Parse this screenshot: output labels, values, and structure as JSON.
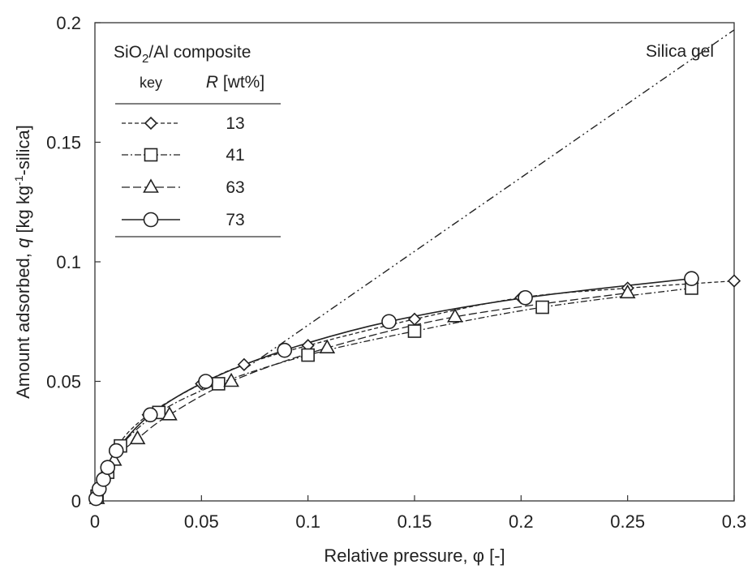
{
  "chart_data": {
    "type": "scatter",
    "xlabel": "Relative pressure, φ  [-]",
    "ylabel_prefix": "Amount adsorbed, ",
    "ylabel_var": "q",
    "ylabel_unit_a": "  [kg kg",
    "ylabel_sup": "-1",
    "ylabel_unit_b": "-silica]",
    "xlim": [
      0,
      0.3
    ],
    "ylim": [
      0,
      0.2
    ],
    "x_ticks": [
      0,
      0.05,
      0.1,
      0.15,
      0.2,
      0.25,
      0.3
    ],
    "x_tick_labels": [
      "0",
      "0.05",
      "0.1",
      "0.15",
      "0.2",
      "0.25",
      "0.3"
    ],
    "y_ticks": [
      0,
      0.05,
      0.1,
      0.15,
      0.2
    ],
    "y_tick_labels": [
      "0",
      "0.05",
      "0.1",
      "0.15",
      "0.2"
    ],
    "grid": false,
    "legend": {
      "title_pre": "SiO",
      "title_sub": "2",
      "title_post": "/Al composite",
      "key_header": "key",
      "r_header_var": "R",
      "r_header_unit": " [wt%]",
      "placement": "top-left"
    },
    "annotations": [
      {
        "text": "Silica gel"
      }
    ],
    "series": [
      {
        "name": "13",
        "marker": "diamond",
        "line": "dashed",
        "x": [
          0.001,
          0.01,
          0.025,
          0.05,
          0.07,
          0.1,
          0.15,
          0.2,
          0.25,
          0.3
        ],
        "y": [
          0.001,
          0.022,
          0.036,
          0.049,
          0.057,
          0.065,
          0.076,
          0.085,
          0.089,
          0.092
        ]
      },
      {
        "name": "41",
        "marker": "square",
        "line": "dash-dot",
        "x": [
          0.001,
          0.006,
          0.012,
          0.03,
          0.058,
          0.1,
          0.15,
          0.21,
          0.28
        ],
        "y": [
          0.002,
          0.012,
          0.023,
          0.037,
          0.049,
          0.061,
          0.071,
          0.081,
          0.089
        ]
      },
      {
        "name": "63",
        "marker": "triangle",
        "line": "long-dash",
        "x": [
          0.001,
          0.009,
          0.02,
          0.035,
          0.064,
          0.109,
          0.169,
          0.25
        ],
        "y": [
          0.001,
          0.017,
          0.026,
          0.036,
          0.05,
          0.064,
          0.077,
          0.087
        ]
      },
      {
        "name": "73",
        "marker": "circle",
        "line": "solid",
        "x": [
          0.0005,
          0.002,
          0.004,
          0.006,
          0.01,
          0.026,
          0.052,
          0.089,
          0.138,
          0.202,
          0.28
        ],
        "y": [
          0.001,
          0.005,
          0.009,
          0.014,
          0.021,
          0.036,
          0.05,
          0.063,
          0.075,
          0.085,
          0.093
        ]
      },
      {
        "label_ref": "Silica gel",
        "marker": "none",
        "line": "dash-dot-dot",
        "x": [
          0.07,
          0.3
        ],
        "y": [
          0.055,
          0.197
        ]
      }
    ]
  }
}
